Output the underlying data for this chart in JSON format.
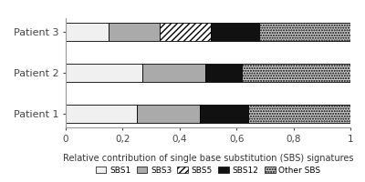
{
  "patients": [
    "Patient 1",
    "Patient 2",
    "Patient 3"
  ],
  "SBS1": [
    0.25,
    0.27,
    0.15
  ],
  "SBS3": [
    0.22,
    0.22,
    0.18
  ],
  "SBS5": [
    0.0,
    0.0,
    0.18
  ],
  "SBS12": [
    0.17,
    0.13,
    0.17
  ],
  "Other SBS": [
    0.36,
    0.38,
    0.32
  ],
  "colors": {
    "SBS1": "#f0f0f0",
    "SBS3": "#aaaaaa",
    "SBS5": "#ffffff",
    "SBS12": "#111111",
    "Other SBS": "#cccccc"
  },
  "xlabel": "Relative contribution of single base substitution (SBS) signatures",
  "xlim": [
    0,
    1
  ],
  "xticks": [
    0,
    0.2,
    0.4,
    0.6,
    0.8,
    1
  ],
  "xticklabels": [
    "0",
    "0,2",
    "0,4",
    "0,6",
    "0,8",
    "1"
  ],
  "bar_height": 0.45,
  "fig_width": 4.0,
  "fig_height": 2.0,
  "dpi": 100,
  "background_color": "#ffffff",
  "border_color": "#999999"
}
